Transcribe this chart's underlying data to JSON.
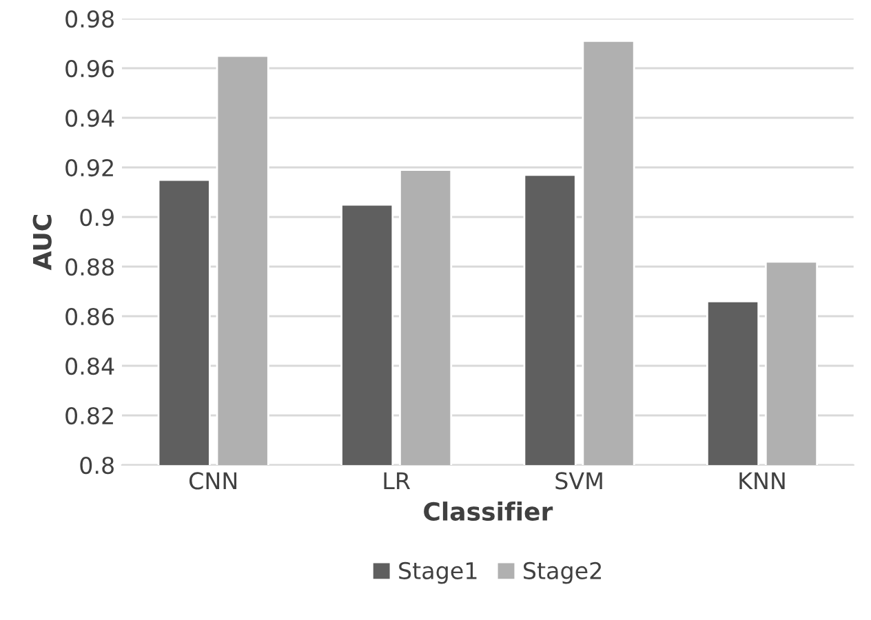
{
  "chart_data": {
    "type": "bar",
    "xlabel": "Classifier",
    "ylabel": "AUC",
    "categories": [
      "CNN",
      "LR",
      "SVM",
      "KNN"
    ],
    "series": [
      {
        "name": "Stage1",
        "color": "#5f5f5f",
        "values": [
          0.915,
          0.905,
          0.917,
          0.866
        ]
      },
      {
        "name": "Stage2",
        "color": "#b0b0b0",
        "values": [
          0.965,
          0.919,
          0.971,
          0.882
        ]
      }
    ],
    "ylim": [
      0.8,
      0.98
    ],
    "yticks": [
      0.8,
      0.82,
      0.84,
      0.86,
      0.88,
      0.9,
      0.92,
      0.94,
      0.96,
      0.98
    ],
    "grid": "y",
    "legend": "bottom"
  }
}
